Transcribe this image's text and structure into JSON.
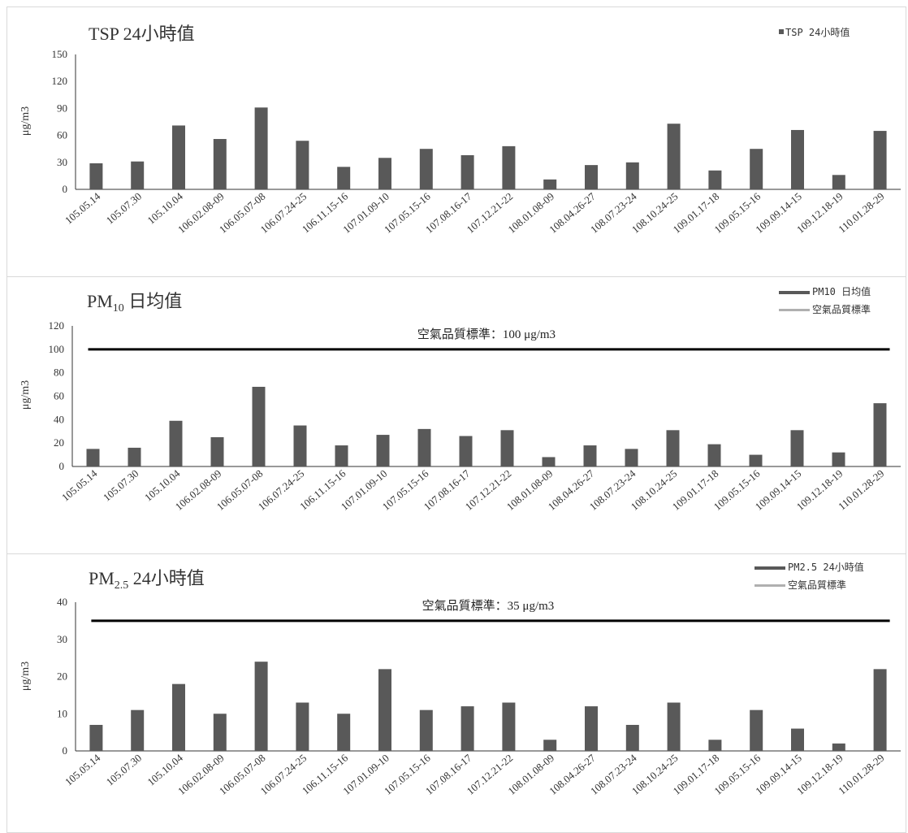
{
  "chart_data": [
    {
      "type": "bar",
      "title": "TSP 24小時值",
      "ylabel": "μg/m3",
      "ylim": [
        0,
        150
      ],
      "yticks": [
        0,
        30,
        60,
        90,
        120,
        150
      ],
      "categories": [
        "105.05.14",
        "105.07.30",
        "105.10.04",
        "106.02.08-09",
        "106.05.07-08",
        "106.07.24-25",
        "106.11.15-16",
        "107.01.09-10",
        "107.05.15-16",
        "107.08.16-17",
        "107.12.21-22",
        "108.01.08-09",
        "108.04.26-27",
        "108.07.23-24",
        "108.10.24-25",
        "109.01.17-18",
        "109.05.15-16",
        "109.09.14-15",
        "109.12.18-19",
        "110.01.28-29"
      ],
      "series": [
        {
          "name": "TSP 24小時值",
          "values": [
            29,
            31,
            71,
            56,
            91,
            54,
            25,
            35,
            45,
            38,
            48,
            11,
            27,
            30,
            73,
            21,
            45,
            66,
            16,
            65
          ],
          "color": "#595959"
        }
      ],
      "legend": "top-right",
      "bar_color": "#595959"
    },
    {
      "type": "bar",
      "title": "PM10 日均值",
      "title_main": "PM",
      "title_sub": "10",
      "title_rest": " 日均值",
      "ylabel": "μg/m3",
      "ylim": [
        0,
        120
      ],
      "yticks": [
        0,
        20,
        40,
        60,
        80,
        100,
        120
      ],
      "categories": [
        "105.05.14",
        "105.07.30",
        "105.10.04",
        "106.02.08-09",
        "106.05.07-08",
        "106.07.24-25",
        "106.11.15-16",
        "107.01.09-10",
        "107.05.15-16",
        "107.08.16-17",
        "107.12.21-22",
        "108.01.08-09",
        "108.04.26-27",
        "108.07.23-24",
        "108.10.24-25",
        "109.01.17-18",
        "109.05.15-16",
        "109.09.14-15",
        "109.12.18-19",
        "110.01.28-29"
      ],
      "series": [
        {
          "name": "PM10 日均值",
          "values": [
            15,
            16,
            39,
            25,
            68,
            35,
            18,
            27,
            32,
            26,
            31,
            8,
            18,
            15,
            31,
            19,
            10,
            31,
            12,
            54
          ],
          "color": "#595959"
        },
        {
          "name": "空氣品質標準",
          "values": [
            100,
            100,
            100,
            100,
            100,
            100,
            100,
            100,
            100,
            100,
            100,
            100,
            100,
            100,
            100,
            100,
            100,
            100,
            100,
            100
          ],
          "color": "#111111"
        }
      ],
      "standard_label": "空氣品質標準：100 μg/m3",
      "legend": "top-right",
      "bar_color": "#595959",
      "line_color": "#000000"
    },
    {
      "type": "bar",
      "title": "PM2.5 24小時值",
      "title_main": "PM",
      "title_sub": "2.5",
      "title_rest": " 24小時值",
      "ylabel": "μg/m3",
      "ylim": [
        0,
        40
      ],
      "yticks": [
        0,
        10,
        20,
        30,
        40
      ],
      "categories": [
        "105.05.14",
        "105.07.30",
        "105.10.04",
        "106.02.08-09",
        "106.05.07-08",
        "106.07.24-25",
        "106.11.15-16",
        "107.01.09-10",
        "107.05.15-16",
        "107.08.16-17",
        "107.12.21-22",
        "108.01.08-09",
        "108.04.26-27",
        "108.07.23-24",
        "108.10.24-25",
        "109.01.17-18",
        "109.05.15-16",
        "109.09.14-15",
        "109.12.18-19",
        "110.01.28-29"
      ],
      "series": [
        {
          "name": "PM2.5 24小時值",
          "values": [
            7,
            11,
            18,
            10,
            24,
            13,
            10,
            22,
            11,
            12,
            13,
            3,
            12,
            7,
            13,
            3,
            11,
            6,
            2,
            22
          ],
          "color": "#595959"
        },
        {
          "name": "空氣品質標準",
          "values": [
            35,
            35,
            35,
            35,
            35,
            35,
            35,
            35,
            35,
            35,
            35,
            35,
            35,
            35,
            35,
            35,
            35,
            35,
            35,
            35
          ],
          "color": "#111111"
        }
      ],
      "standard_label": "空氣品質標準：35 μg/m3",
      "legend": "top-right",
      "bar_color": "#595959",
      "line_color": "#000000"
    }
  ],
  "legend_std_swatch_color": "#b0b0b0"
}
